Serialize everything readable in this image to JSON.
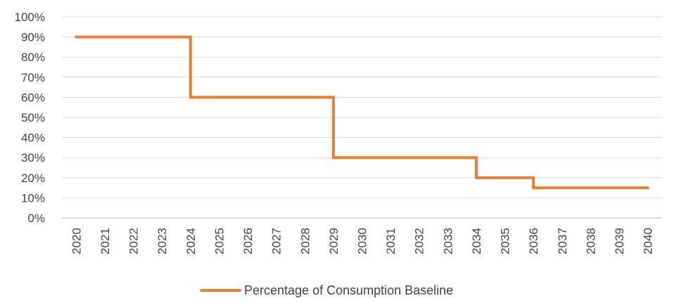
{
  "chart_data": {
    "type": "line",
    "step": "after",
    "x": [
      2020,
      2021,
      2022,
      2023,
      2024,
      2025,
      2026,
      2027,
      2028,
      2029,
      2030,
      2031,
      2032,
      2033,
      2034,
      2035,
      2036,
      2037,
      2038,
      2039,
      2040
    ],
    "x_tick_labels": [
      "2020",
      "2021",
      "2022",
      "2023",
      "2024",
      "2025",
      "2026",
      "2027",
      "2028",
      "2029",
      "2030",
      "2031",
      "2032",
      "2033",
      "2034",
      "2035",
      "2036",
      "2037",
      "2038",
      "2039",
      "2040"
    ],
    "series": [
      {
        "name": "Percentage of Consumption Baseline",
        "color": "#ED7D31",
        "values": [
          90,
          90,
          90,
          90,
          60,
          60,
          60,
          60,
          60,
          30,
          30,
          30,
          30,
          30,
          20,
          20,
          15,
          15,
          15,
          15,
          15
        ]
      }
    ],
    "ylim": [
      0,
      100
    ],
    "y_ticks": [
      0,
      10,
      20,
      30,
      40,
      50,
      60,
      70,
      80,
      90,
      100
    ],
    "y_tick_labels": [
      "0%",
      "10%",
      "20%",
      "30%",
      "40%",
      "50%",
      "60%",
      "70%",
      "80%",
      "90%",
      "100%"
    ],
    "grid": true,
    "legend_position": "bottom",
    "title": "",
    "xlabel": "",
    "ylabel": ""
  }
}
